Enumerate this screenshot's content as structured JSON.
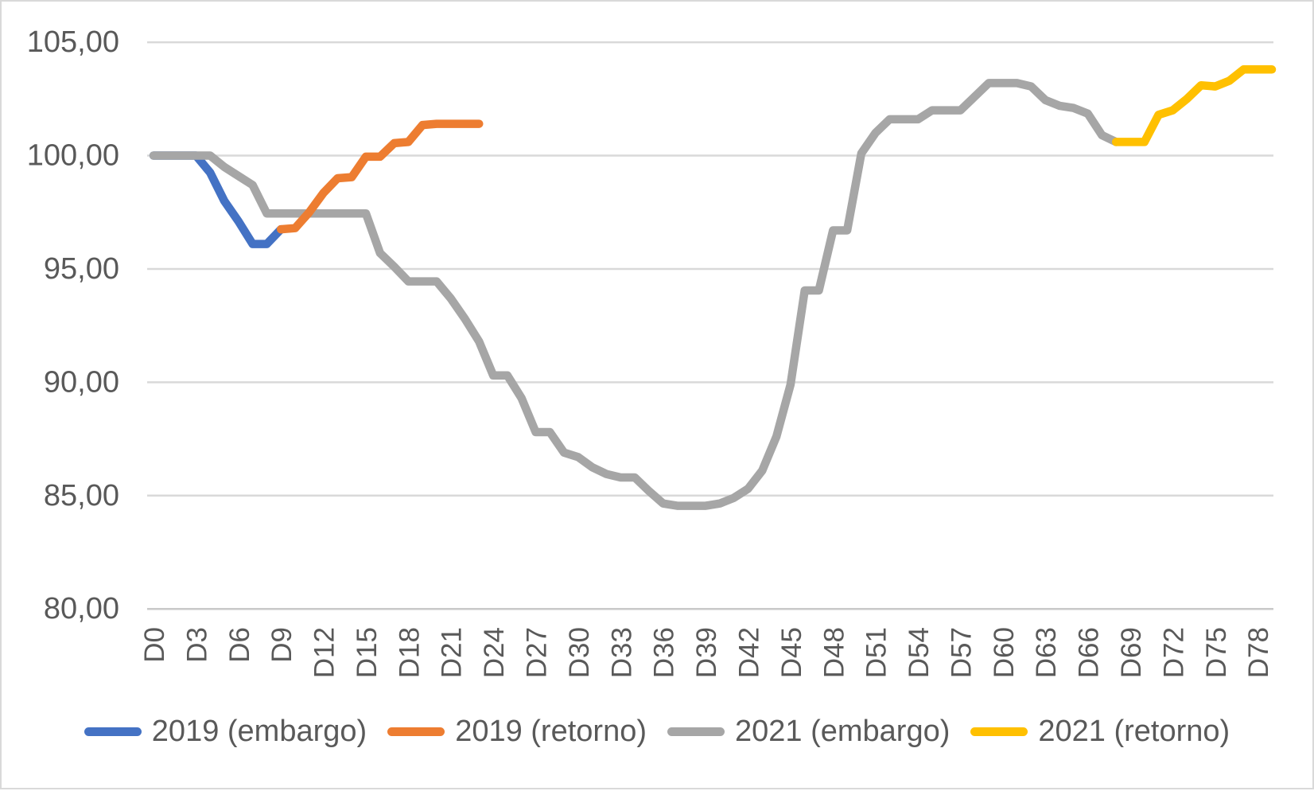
{
  "chart_data": {
    "type": "line",
    "title": "",
    "xlabel": "",
    "ylabel": "",
    "grid": true,
    "legend_position": "bottom",
    "ylim": [
      80,
      105
    ],
    "y_tick_interval": 5,
    "y_ticks": [
      {
        "label": "105,00",
        "value": 105
      },
      {
        "label": "100,00",
        "value": 100
      },
      {
        "label": "95,00",
        "value": 95
      },
      {
        "label": "90,00",
        "value": 90
      },
      {
        "label": "85,00",
        "value": 85
      },
      {
        "label": "80,00",
        "value": 80
      }
    ],
    "x_tick_step": 3,
    "x_tick_labels": [
      "D0",
      "D3",
      "D6",
      "D9",
      "D12",
      "D15",
      "D18",
      "D21",
      "D24",
      "D27",
      "D30",
      "D33",
      "D36",
      "D39",
      "D42",
      "D45",
      "D48",
      "D51",
      "D54",
      "D57",
      "D60",
      "D63",
      "D66",
      "D69",
      "D72",
      "D75",
      "D78"
    ],
    "x_max_day": 79,
    "series": [
      {
        "name": "2019 (embargo)",
        "color": "#4472C4",
        "z": 1,
        "start_day": 0,
        "values": [
          100,
          100,
          100,
          100,
          99.25,
          98.0,
          97.1,
          96.1,
          96.1,
          96.75
        ]
      },
      {
        "name": "2019 (retorno)",
        "color": "#ED7D31",
        "z": 3,
        "start_day": 9,
        "values": [
          96.75,
          96.8,
          97.5,
          98.35,
          99.0,
          99.05,
          99.95,
          99.95,
          100.55,
          100.6,
          101.35,
          101.4,
          101.4,
          101.4,
          101.4
        ]
      },
      {
        "name": "2021 (embargo)",
        "color": "#A6A6A6",
        "z": 2,
        "start_day": 0,
        "values": [
          100,
          100,
          100,
          100,
          100,
          99.5,
          99.1,
          98.7,
          97.45,
          97.45,
          97.45,
          97.45,
          97.45,
          97.45,
          97.45,
          97.45,
          95.7,
          95.1,
          94.45,
          94.45,
          94.45,
          93.7,
          92.8,
          91.8,
          90.3,
          90.3,
          89.3,
          87.8,
          87.8,
          86.9,
          86.7,
          86.25,
          85.95,
          85.8,
          85.8,
          85.2,
          84.65,
          84.55,
          84.55,
          84.55,
          84.65,
          84.9,
          85.3,
          86.1,
          87.6,
          89.9,
          94.05,
          94.05,
          96.7,
          96.7,
          100.1,
          101.0,
          101.6,
          101.6,
          101.6,
          102.0,
          102.0,
          102.0,
          102.6,
          103.2,
          103.2,
          103.2,
          103.05,
          102.45,
          102.2,
          102.1,
          101.85,
          100.9,
          100.6
        ]
      },
      {
        "name": "2021 (retorno)",
        "color": "#FFC000",
        "z": 4,
        "start_day": 68,
        "values": [
          100.6,
          100.6,
          100.6,
          101.8,
          102.0,
          102.5,
          103.1,
          103.05,
          103.3,
          103.8,
          103.8,
          103.8
        ]
      }
    ]
  },
  "legend": {
    "items": [
      {
        "label": "2019 (embargo)",
        "color": "#4472C4"
      },
      {
        "label": "2019 (retorno)",
        "color": "#ED7D31"
      },
      {
        "label": "2021 (embargo)",
        "color": "#A6A6A6"
      },
      {
        "label": "2021 (retorno)",
        "color": "#FFC000"
      }
    ]
  },
  "colors": {
    "gridline": "#D9D9D9",
    "axis_line": "#C9C9C9",
    "tick_label": "#595959",
    "background": "#FFFFFF"
  }
}
